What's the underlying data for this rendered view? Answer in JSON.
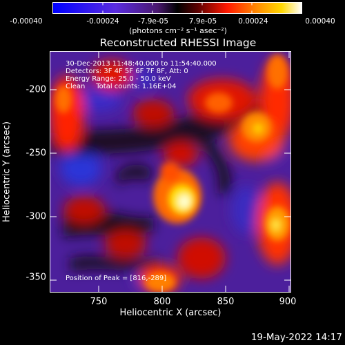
{
  "colorbar": {
    "ticks": [
      "-0.00040",
      "-0.00024",
      "-7.9e-05",
      "7.9e-05",
      "0.00024",
      "0.00040"
    ],
    "units": "(photons cm⁻² s⁻¹ asec⁻²)",
    "range": [
      -0.0004,
      0.0004
    ]
  },
  "image": {
    "title": "Reconstructed RHESSI Image",
    "annotations": {
      "time": "30-Dec-2013 11:48:40.000 to 11:54:40.000",
      "detectors": "Detectors: 3F 4F 5F 6F 7F 8F, Att: 0",
      "energy": "Energy Range: 25.0 - 50.0 keV",
      "method": "Clean     Total counts: 1.16E+04",
      "peak": "Position of Peak = [816,-289]"
    },
    "peak_position": [
      816,
      -289
    ]
  },
  "axes": {
    "xlabel": "Heliocentric X (arcsec)",
    "ylabel": "Heliocentric Y (arcsec)",
    "xlim": [
      711,
      901
    ],
    "ylim": [
      -366,
      -176
    ],
    "xticks": [
      "750",
      "800",
      "850",
      "900"
    ],
    "yticks": [
      "-200",
      "-250",
      "-300",
      "-350"
    ]
  },
  "footer": {
    "timestamp": "19-May-2022 14:17"
  },
  "colors": {
    "background": "#000000",
    "foreground": "#ffffff"
  }
}
